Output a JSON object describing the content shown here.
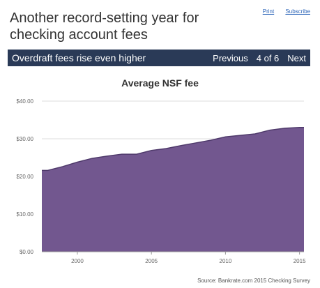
{
  "page": {
    "title": "Another record-setting year for checking account fees",
    "links": {
      "print": "Print",
      "subscribe": "Subscribe"
    }
  },
  "slide_bar": {
    "subtitle": "Overdraft fees rise even higher",
    "previous": "Previous",
    "counter": "4 of 6",
    "next": "Next",
    "background_color": "#2a3a57"
  },
  "source_text": "Source: Bankrate.com 2015 Checking Survey",
  "chart_data": {
    "type": "area",
    "title": "Average NSF fee",
    "xlabel": "",
    "ylabel": "",
    "x": [
      1998,
      1999,
      2000,
      2001,
      2002,
      2003,
      2004,
      2005,
      2006,
      2007,
      2008,
      2009,
      2010,
      2011,
      2012,
      2013,
      2014,
      2015
    ],
    "values": [
      21.6,
      22.6,
      23.8,
      24.8,
      25.4,
      25.9,
      25.9,
      26.9,
      27.4,
      28.2,
      28.9,
      29.6,
      30.5,
      30.9,
      31.3,
      32.3,
      32.8,
      33.0
    ],
    "xlim": [
      1997.6,
      2015.3
    ],
    "ylim": [
      0,
      40
    ],
    "x_ticks": [
      2000,
      2005,
      2010,
      2015
    ],
    "y_ticks": [
      0,
      10,
      20,
      30,
      40
    ],
    "y_tick_labels": [
      "$0.00",
      "$10.00",
      "$20.00",
      "$30.00",
      "$40.00"
    ],
    "grid": true,
    "legend": "none",
    "fill_color": "#72578f",
    "line_color": "#4f3a6b"
  }
}
